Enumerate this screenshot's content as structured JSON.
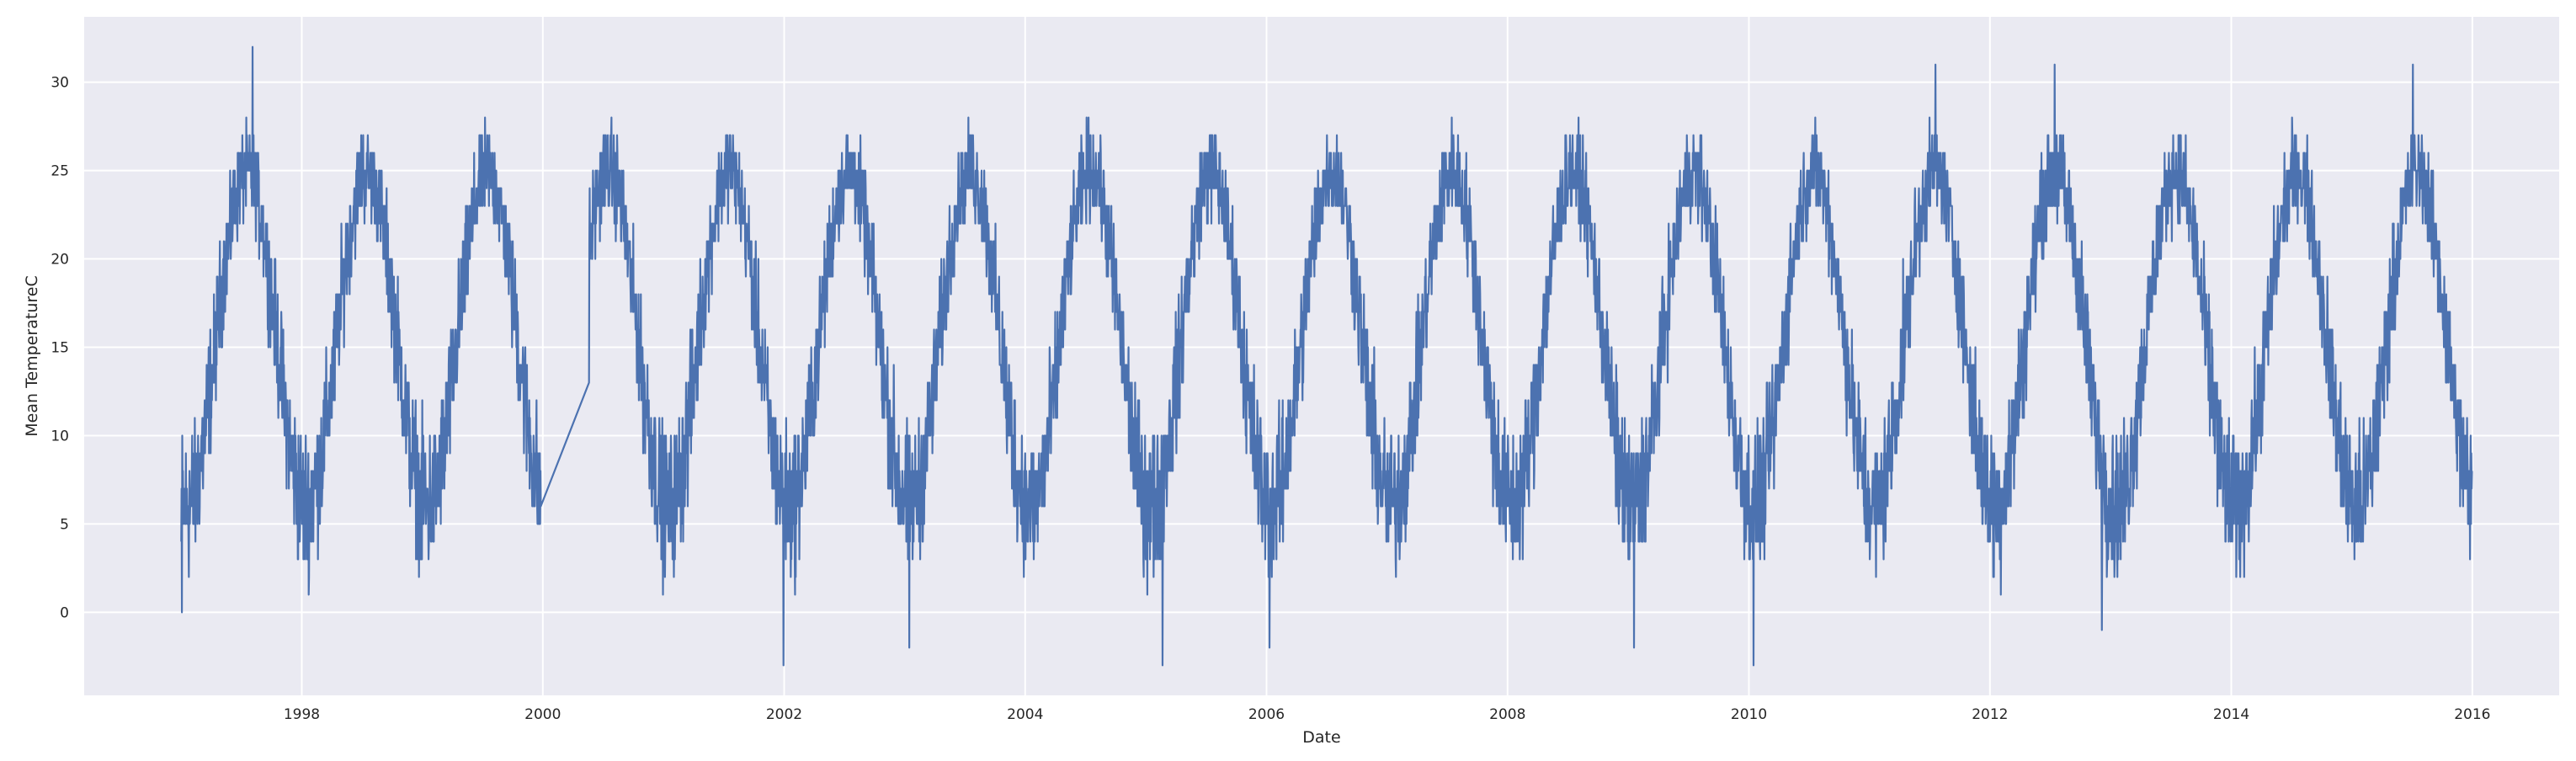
{
  "chart_data": {
    "type": "line",
    "title": "",
    "xlabel": "Date",
    "ylabel": "Mean TemperatureC",
    "xlim": [
      "1996-03-13",
      "2016-09-20"
    ],
    "ylim": [
      -4.7,
      33.7
    ],
    "x_ticks": [
      "1998",
      "2000",
      "2002",
      "2004",
      "2006",
      "2008",
      "2010",
      "2012",
      "2014",
      "2016"
    ],
    "y_ticks": [
      0,
      5,
      10,
      15,
      20,
      25,
      30
    ],
    "grid": true,
    "legend": "none",
    "colors": {
      "background": "#eaeaf2",
      "grid": "#ffffff",
      "line": "#4c72b0"
    },
    "series": [
      {
        "x_start": "1997-01-01",
        "x_end": "2015-12-31",
        "frequency": "daily",
        "gaps": [
          {
            "from": "1999-12-26",
            "to": "2000-05-20"
          }
        ],
        "annual_cycle_approx": {
          "trough_month": "January",
          "peak_month": "July",
          "typical_winter_range": [
            0,
            12
          ],
          "typical_summer_range": [
            20,
            30
          ]
        },
        "min": -3,
        "max": 32,
        "notable_points": [
          {
            "x": "1997-01-01",
            "y": 4
          },
          {
            "x": "1997-01-03",
            "y": 0
          },
          {
            "x": "1997-08-05",
            "y": 32
          },
          {
            "x": "1999-12-25",
            "y": 8
          },
          {
            "x": "2000-05-20",
            "y": 13
          },
          {
            "x": "2001-12-30",
            "y": -3
          },
          {
            "x": "2003-01-15",
            "y": -2
          },
          {
            "x": "2005-02-20",
            "y": -3
          },
          {
            "x": "2006-01-10",
            "y": -2
          },
          {
            "x": "2009-01-18",
            "y": -2
          },
          {
            "x": "2010-01-15",
            "y": -3
          },
          {
            "x": "2011-07-20",
            "y": 31
          },
          {
            "x": "2012-07-15",
            "y": 31
          },
          {
            "x": "2012-12-05",
            "y": -1
          },
          {
            "x": "2015-07-05",
            "y": 31
          },
          {
            "x": "2015-12-31",
            "y": 8
          }
        ]
      }
    ]
  }
}
